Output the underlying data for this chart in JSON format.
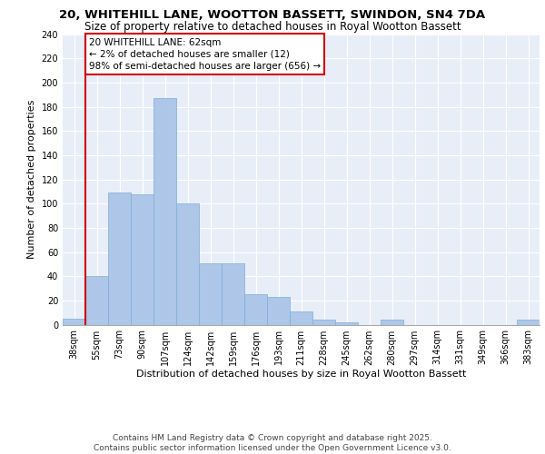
{
  "title_line1": "20, WHITEHILL LANE, WOOTTON BASSETT, SWINDON, SN4 7DA",
  "title_line2": "Size of property relative to detached houses in Royal Wootton Bassett",
  "xlabel": "Distribution of detached houses by size in Royal Wootton Bassett",
  "ylabel": "Number of detached properties",
  "footnote": "Contains HM Land Registry data © Crown copyright and database right 2025.\nContains public sector information licensed under the Open Government Licence v3.0.",
  "categories": [
    "38sqm",
    "55sqm",
    "73sqm",
    "90sqm",
    "107sqm",
    "124sqm",
    "142sqm",
    "159sqm",
    "176sqm",
    "193sqm",
    "211sqm",
    "228sqm",
    "245sqm",
    "262sqm",
    "280sqm",
    "297sqm",
    "314sqm",
    "331sqm",
    "349sqm",
    "366sqm",
    "383sqm"
  ],
  "values": [
    5,
    40,
    109,
    108,
    187,
    100,
    51,
    51,
    25,
    23,
    11,
    4,
    2,
    0,
    4,
    0,
    0,
    0,
    0,
    0,
    4
  ],
  "bar_color": "#aec6e8",
  "bar_edge_color": "#7aafd4",
  "bar_width": 1.0,
  "vline_x_idx": 1.0,
  "annotation_text": "20 WHITEHILL LANE: 62sqm\n← 2% of detached houses are smaller (12)\n98% of semi-detached houses are larger (656) →",
  "annotation_box_color": "#ffffff",
  "annotation_box_edge_color": "#cc0000",
  "vline_color": "#cc0000",
  "ylim": [
    0,
    240
  ],
  "yticks": [
    0,
    20,
    40,
    60,
    80,
    100,
    120,
    140,
    160,
    180,
    200,
    220,
    240
  ],
  "bg_color": "#e8eef8",
  "grid_color": "#ffffff",
  "title_fontsize": 9.5,
  "subtitle_fontsize": 8.5,
  "axis_label_fontsize": 8,
  "tick_fontsize": 7,
  "annotation_fontsize": 7.5,
  "footnote_fontsize": 6.5
}
